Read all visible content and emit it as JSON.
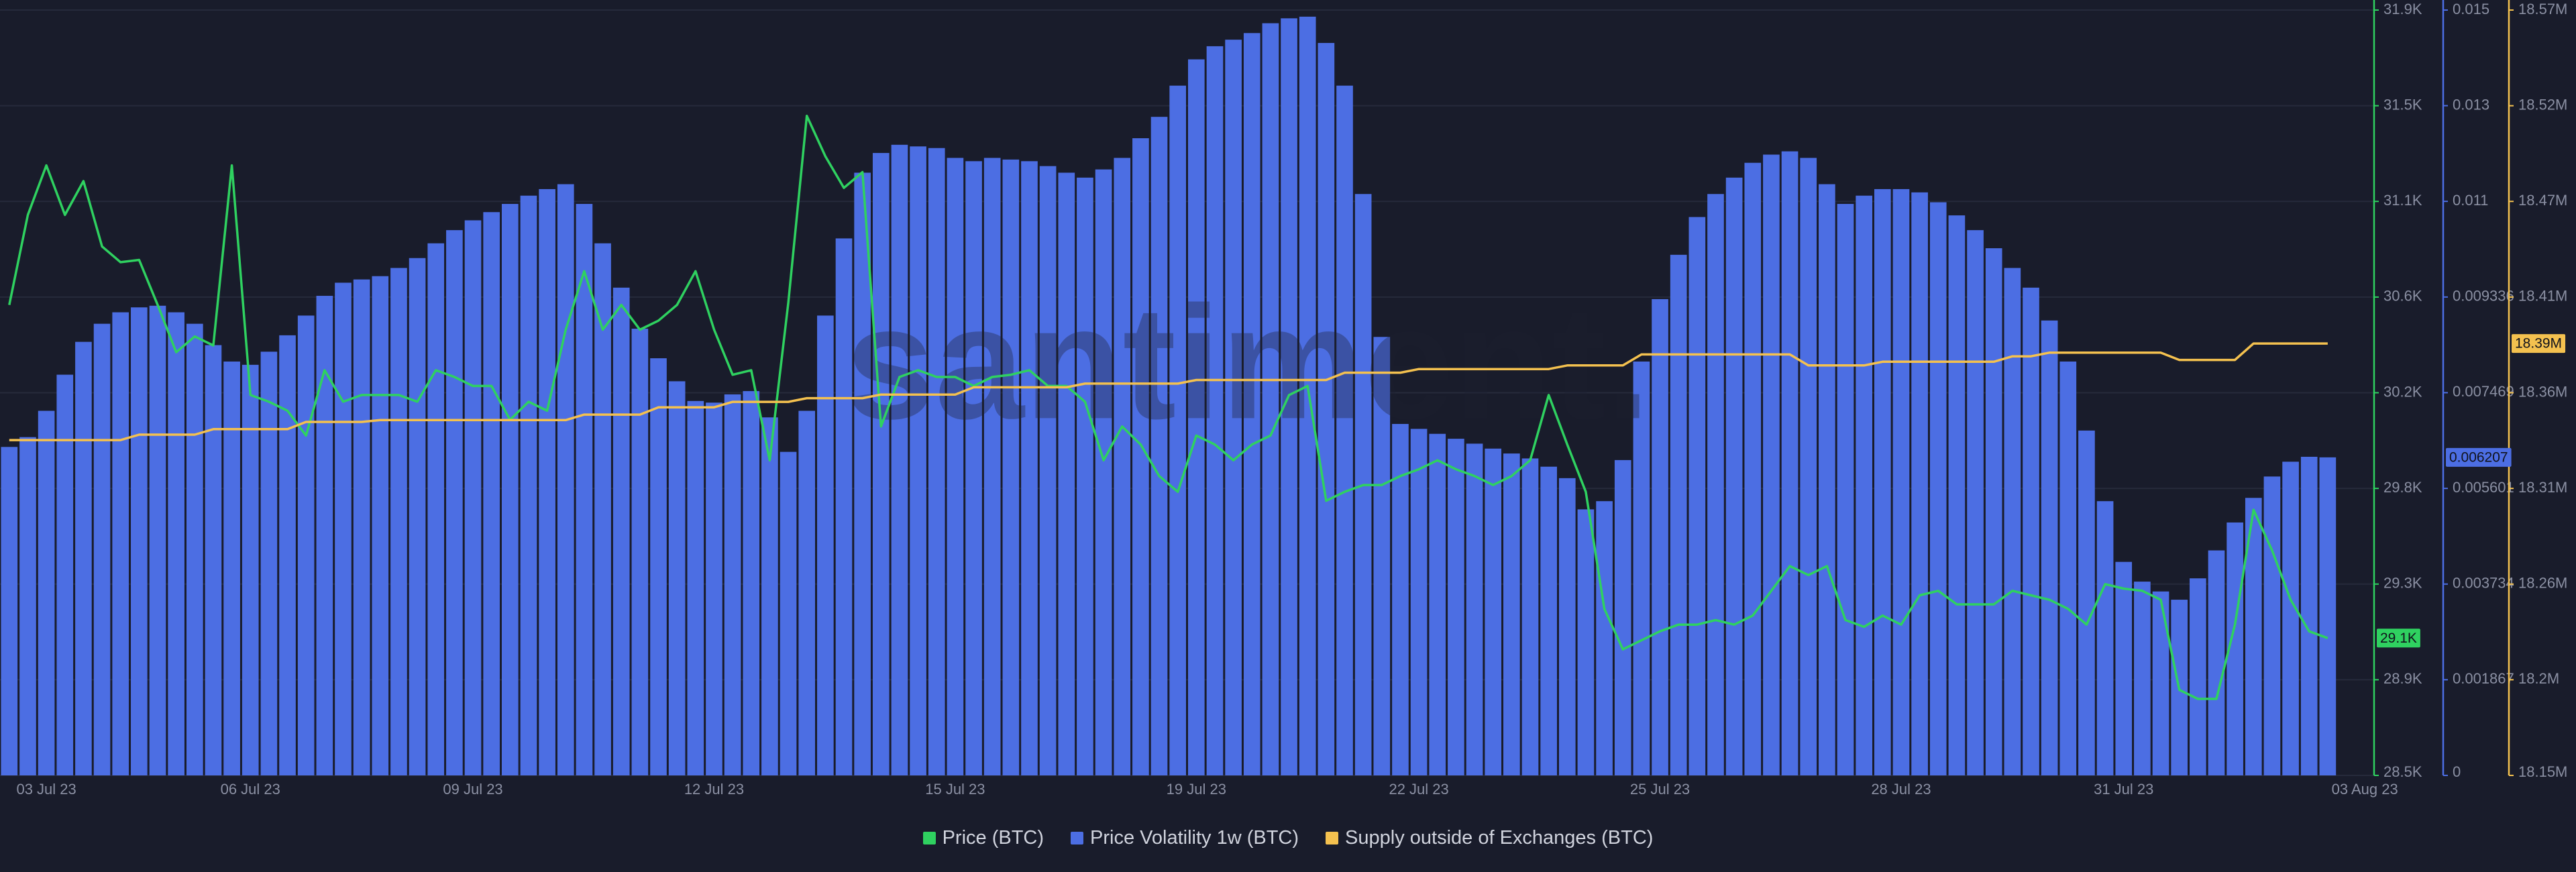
{
  "chart_data": {
    "type": "combo",
    "watermark": "santiment.",
    "categories": [
      null,
      null,
      "03 Jul 23",
      null,
      null,
      null,
      null,
      null,
      null,
      null,
      null,
      null,
      null,
      "06 Jul 23",
      null,
      null,
      null,
      null,
      null,
      null,
      null,
      null,
      null,
      null,
      null,
      "09 Jul 23",
      null,
      null,
      null,
      null,
      null,
      null,
      null,
      null,
      null,
      null,
      null,
      null,
      "12 Jul 23",
      null,
      null,
      null,
      null,
      null,
      null,
      null,
      null,
      null,
      null,
      null,
      null,
      "15 Jul 23",
      null,
      null,
      null,
      null,
      null,
      null,
      null,
      null,
      null,
      null,
      null,
      null,
      "19 Jul 23",
      null,
      null,
      null,
      null,
      null,
      null,
      null,
      null,
      null,
      null,
      null,
      "22 Jul 23",
      null,
      null,
      null,
      null,
      null,
      null,
      null,
      null,
      null,
      null,
      null,
      null,
      "25 Jul 23",
      null,
      null,
      null,
      null,
      null,
      null,
      null,
      null,
      null,
      null,
      null,
      null,
      "28 Jul 23",
      null,
      null,
      null,
      null,
      null,
      null,
      null,
      null,
      null,
      null,
      null,
      "31 Jul 23",
      null,
      null,
      null,
      null,
      null,
      null,
      null,
      null,
      null,
      null,
      null,
      null,
      "03 Aug 23"
    ],
    "ylim": [
      28500,
      31900
    ],
    "yticks": [
      {
        "value": 28500,
        "label": "28.5K"
      },
      {
        "value": 28925,
        "label": "28.9K"
      },
      {
        "value": 29350,
        "label": "29.3K"
      },
      {
        "value": 29775,
        "label": "29.8K"
      },
      {
        "value": 30200,
        "label": "30.2K"
      },
      {
        "value": 30625,
        "label": "30.6K"
      },
      {
        "value": 31050,
        "label": "31.1K"
      },
      {
        "value": 31475,
        "label": "31.5K"
      },
      {
        "value": 31900,
        "label": "31.9K"
      }
    ],
    "y2lim": [
      0,
      0.014936
    ],
    "y2ticks": [
      0,
      0.001867,
      0.003734,
      0.005601,
      0.007469,
      0.009336,
      {
        "value": 0.011203,
        "label": "0.011"
      },
      {
        "value": 0.01307,
        "label": "0.013"
      },
      {
        "value": 0.014936,
        "label": "0.015"
      }
    ],
    "y3lim": [
      18150000,
      18570000
    ],
    "y3ticks": [
      {
        "value": 18150000,
        "label": "18.15M"
      },
      {
        "value": 18202500,
        "label": "18.2M"
      },
      {
        "value": 18255000,
        "label": "18.26M"
      },
      {
        "value": 18307500,
        "label": "18.31M"
      },
      {
        "value": 18360000,
        "label": "18.36M"
      },
      {
        "value": 18412500,
        "label": "18.41M"
      },
      {
        "value": 18465000,
        "label": "18.47M"
      },
      {
        "value": 18517500,
        "label": "18.52M"
      },
      {
        "value": 18570000,
        "label": "18.57M"
      }
    ],
    "grid": true,
    "legend": "bottom",
    "series": [
      {
        "name": "Price (BTC)",
        "type": "line",
        "axis": "y",
        "color": "#2fd160",
        "last_label": "29.1K",
        "values": [
          30590,
          30990,
          31210,
          30990,
          31140,
          30850,
          30780,
          30790,
          30590,
          30380,
          30450,
          30410,
          31210,
          30190,
          30160,
          30120,
          30010,
          30300,
          30160,
          30190,
          30190,
          30190,
          30160,
          30300,
          30270,
          30230,
          30230,
          30080,
          30160,
          30120,
          30480,
          30740,
          30480,
          30590,
          30480,
          30520,
          30590,
          30740,
          30480,
          30280,
          30300,
          29900,
          30600,
          31430,
          31250,
          31110,
          31180,
          30050,
          30270,
          30300,
          30270,
          30270,
          30230,
          30270,
          30280,
          30300,
          30230,
          30230,
          30160,
          29900,
          30050,
          29970,
          29830,
          29760,
          30010,
          29970,
          29900,
          29970,
          30010,
          30190,
          30230,
          29720,
          29760,
          29790,
          29790,
          29830,
          29860,
          29900,
          29860,
          29830,
          29790,
          29830,
          29900,
          30190,
          29970,
          29760,
          29240,
          29060,
          29100,
          29140,
          29170,
          29170,
          29190,
          29170,
          29210,
          29320,
          29430,
          29390,
          29430,
          29190,
          29160,
          29210,
          29170,
          29300,
          29320,
          29260,
          29260,
          29260,
          29320,
          29300,
          29280,
          29240,
          29170,
          29350,
          29330,
          29320,
          29280,
          28880,
          28840,
          28840,
          29170,
          29680,
          29500,
          29280,
          29140,
          29110,
          null,
          null
        ]
      },
      {
        "name": "Price Volatility 1w (BTC)",
        "type": "bar",
        "axis": "y2",
        "color": "#4c6ee3",
        "last_label": "0.006207",
        "values": [
          0.00641,
          0.006602,
          0.007115,
          0.00782,
          0.008461,
          0.008814,
          0.009038,
          0.009134,
          0.009166,
          0.009038,
          0.008814,
          0.008397,
          0.008077,
          0.008013,
          0.008269,
          0.008589,
          0.008974,
          0.009359,
          0.009615,
          0.009679,
          0.009743,
          0.009903,
          0.010096,
          0.010384,
          0.010641,
          0.010833,
          0.010993,
          0.011153,
          0.011314,
          0.011442,
          0.011538,
          0.011153,
          0.010384,
          0.009519,
          0.008718,
          0.008141,
          0.007692,
          0.007307,
          0.007275,
          0.007436,
          0.0075,
          0.006987,
          0.006314,
          0.007115,
          0.008974,
          0.01048,
          0.011762,
          0.012147,
          0.012307,
          0.012275,
          0.012243,
          0.012051,
          0.011987,
          0.012051,
          0.012019,
          0.011987,
          0.011891,
          0.011762,
          0.011666,
          0.011826,
          0.012051,
          0.012435,
          0.012852,
          0.013461,
          0.013974,
          0.01423,
          0.014358,
          0.014487,
          0.014679,
          0.014775,
          0.014807,
          0.014294,
          0.013461,
          0.011346,
          0.008557,
          0.006859,
          0.006763,
          0.006666,
          0.00657,
          0.006474,
          0.006378,
          0.006282,
          0.006186,
          0.006025,
          0.005801,
          0.005192,
          0.005352,
          0.006154,
          0.008077,
          0.009295,
          0.01016,
          0.010897,
          0.011346,
          0.011666,
          0.011955,
          0.012115,
          0.012179,
          0.012051,
          0.011538,
          0.011153,
          0.011314,
          0.011442,
          0.011442,
          0.011378,
          0.011185,
          0.010929,
          0.010641,
          0.010288,
          0.009903,
          0.009519,
          0.008878,
          0.008077,
          0.00673,
          0.005352,
          0.004167,
          0.003782,
          0.00359,
          0.003429,
          0.003846,
          0.004391,
          0.004936,
          0.005416,
          0.005833,
          0.006122,
          0.006218,
          0.006207,
          null,
          null
        ]
      },
      {
        "name": "Supply outside of Exchanges (BTC)",
        "type": "line",
        "axis": "y3",
        "color": "#f4c14f",
        "last_label": "18.39M",
        "values": [
          18334000,
          18334000,
          18334000,
          18334000,
          18334000,
          18334000,
          18334000,
          18337000,
          18337000,
          18337000,
          18337000,
          18340000,
          18340000,
          18340000,
          18340000,
          18340000,
          18344000,
          18344000,
          18344000,
          18344000,
          18345000,
          18345000,
          18345000,
          18345000,
          18345000,
          18345000,
          18345000,
          18345000,
          18345000,
          18345000,
          18345000,
          18348000,
          18348000,
          18348000,
          18348000,
          18352000,
          18352000,
          18352000,
          18352000,
          18355000,
          18355000,
          18355000,
          18355000,
          18357000,
          18357000,
          18357000,
          18357000,
          18359000,
          18359000,
          18359000,
          18359000,
          18359000,
          18363000,
          18363000,
          18363000,
          18363000,
          18363000,
          18363000,
          18365000,
          18365000,
          18365000,
          18365000,
          18365000,
          18365000,
          18367000,
          18367000,
          18367000,
          18367000,
          18367000,
          18367000,
          18367000,
          18367000,
          18371000,
          18371000,
          18371000,
          18371000,
          18373000,
          18373000,
          18373000,
          18373000,
          18373000,
          18373000,
          18373000,
          18373000,
          18375000,
          18375000,
          18375000,
          18375000,
          18381000,
          18381000,
          18381000,
          18381000,
          18381000,
          18381000,
          18381000,
          18381000,
          18381000,
          18375000,
          18375000,
          18375000,
          18375000,
          18377000,
          18377000,
          18377000,
          18377000,
          18377000,
          18377000,
          18377000,
          18380000,
          18380000,
          18382000,
          18382000,
          18382000,
          18382000,
          18382000,
          18382000,
          18382000,
          18378000,
          18378000,
          18378000,
          18378000,
          18387000,
          18387000,
          18387000,
          18387000,
          18387000,
          null,
          null
        ]
      }
    ]
  }
}
